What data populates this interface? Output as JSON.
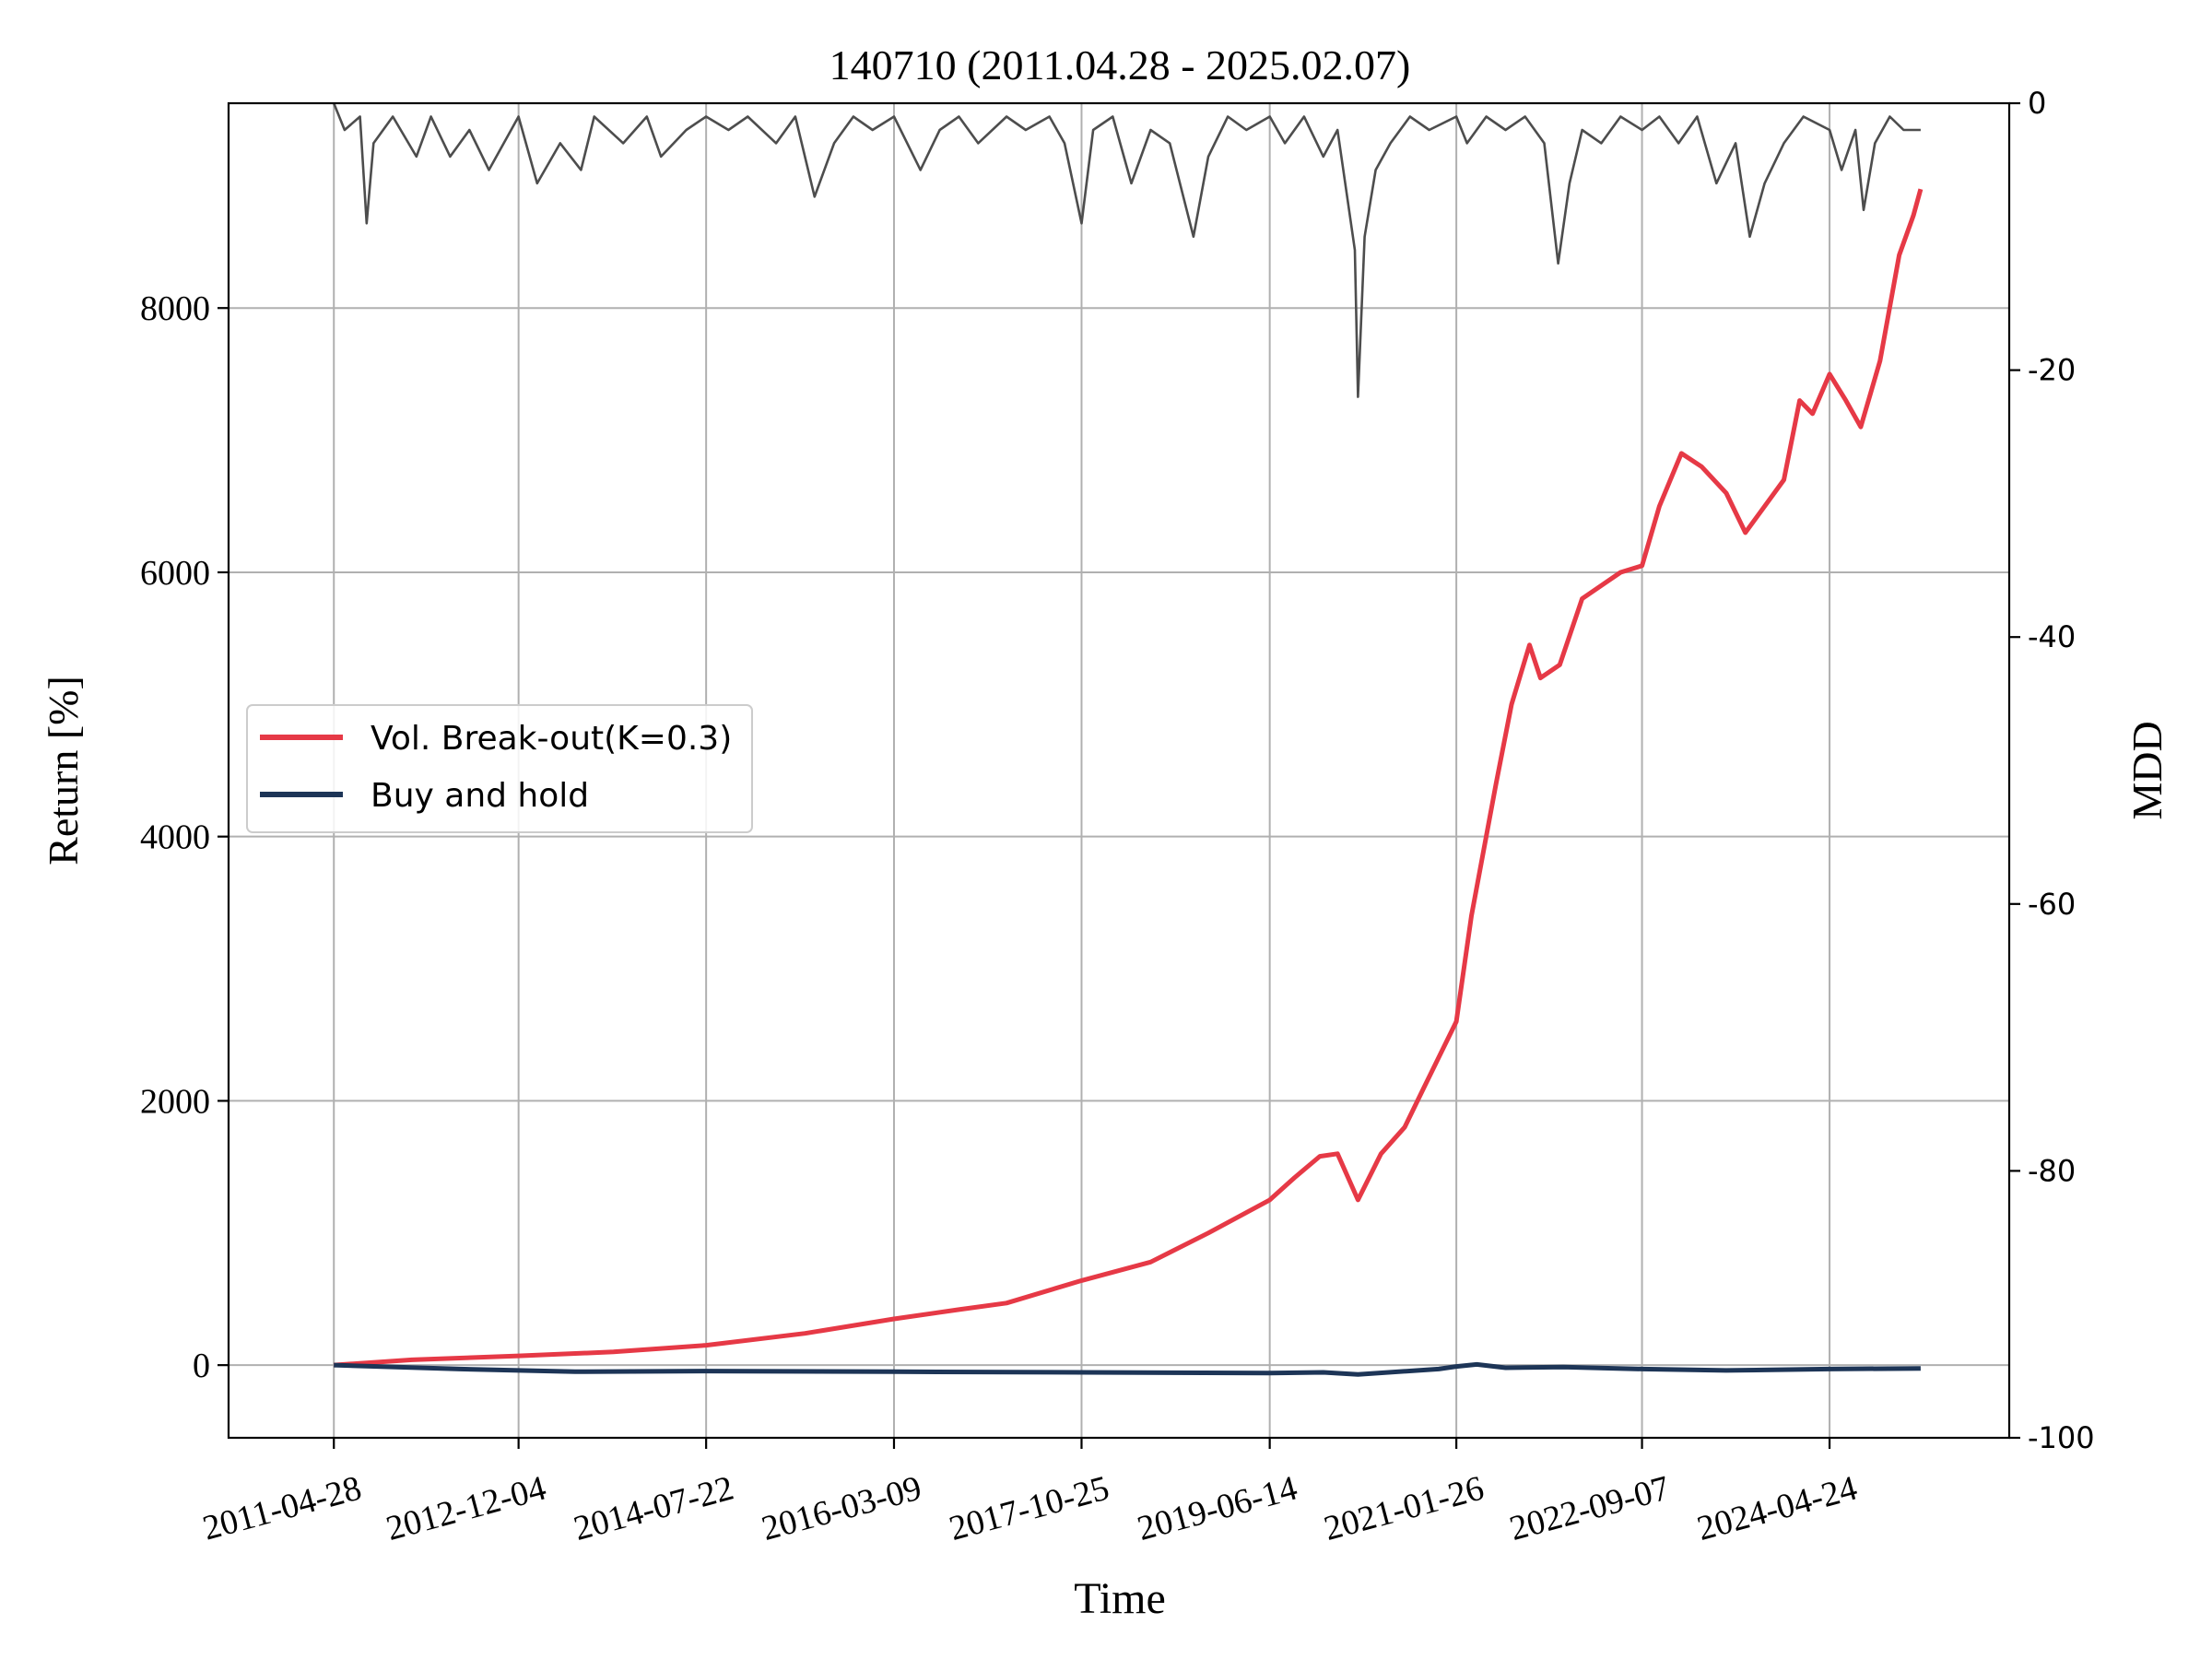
{
  "chart_data": {
    "type": "line",
    "title": "140710 (2011.04.28 - 2025.02.07)",
    "xlabel": "Time",
    "ylabel": "Return [%]",
    "y2label": "MDD",
    "x_ticks": [
      "2011-04-28",
      "2012-12-04",
      "2014-07-22",
      "2016-03-09",
      "2017-10-25",
      "2019-06-14",
      "2021-01-26",
      "2022-09-07",
      "2024-04-24"
    ],
    "x_range": [
      "2010-05-29",
      "2025-11-15"
    ],
    "ylim": [
      -550,
      9550
    ],
    "y_ticks": [
      0,
      2000,
      4000,
      6000,
      8000
    ],
    "y2lim": [
      -100,
      0
    ],
    "y2_ticks": [
      0,
      -20,
      -40,
      -60,
      -80,
      -100
    ],
    "grid": true,
    "legend_position": "center-left",
    "series": [
      {
        "name": "Vol. Break-out(K=0.3)",
        "axis": "left",
        "color": "#e63946",
        "x": [
          "2011-04-28",
          "2012-01-01",
          "2012-12-04",
          "2013-10-01",
          "2014-07-22",
          "2015-06-01",
          "2016-03-09",
          "2016-10-01",
          "2017-03-01",
          "2017-10-25",
          "2018-06-01",
          "2018-12-01",
          "2019-06-14",
          "2019-09-01",
          "2019-11-20",
          "2020-01-15",
          "2020-03-20",
          "2020-06-01",
          "2020-08-15",
          "2020-10-15",
          "2021-01-26",
          "2021-03-15",
          "2021-06-01",
          "2021-07-20",
          "2021-09-15",
          "2021-10-20",
          "2021-12-20",
          "2022-03-01",
          "2022-05-01",
          "2022-07-01",
          "2022-09-07",
          "2022-11-01",
          "2023-01-10",
          "2023-03-15",
          "2023-06-01",
          "2023-08-01",
          "2023-10-01",
          "2023-12-01",
          "2024-01-20",
          "2024-03-01",
          "2024-04-24",
          "2024-06-15",
          "2024-08-01",
          "2024-10-01",
          "2024-12-01",
          "2025-01-15",
          "2025-02-07"
        ],
        "values": [
          0,
          40,
          70,
          100,
          150,
          240,
          350,
          420,
          470,
          640,
          780,
          1000,
          1250,
          1420,
          1580,
          1600,
          1250,
          1600,
          1800,
          2100,
          2600,
          3400,
          4400,
          5000,
          5450,
          5200,
          5300,
          5800,
          5900,
          6000,
          6050,
          6500,
          6900,
          6800,
          6600,
          6300,
          6500,
          6700,
          7300,
          7200,
          7500,
          7300,
          7100,
          7600,
          8400,
          8700,
          8900
        ]
      },
      {
        "name": "Buy and hold",
        "axis": "left",
        "color": "#1d3557",
        "x": [
          "2011-04-28",
          "2012-06-01",
          "2013-06-01",
          "2014-07-22",
          "2016-03-09",
          "2017-10-25",
          "2019-06-14",
          "2019-12-01",
          "2020-03-20",
          "2020-12-01",
          "2021-01-26",
          "2021-04-01",
          "2021-07-01",
          "2022-01-01",
          "2022-09-07",
          "2023-06-01",
          "2024-04-24",
          "2025-02-07"
        ],
        "values": [
          0,
          -30,
          -50,
          -45,
          -50,
          -55,
          -60,
          -55,
          -70,
          -30,
          -10,
          5,
          -20,
          -15,
          -30,
          -40,
          -30,
          -25
        ]
      },
      {
        "name": "MDD",
        "axis": "right",
        "color": "#4d4d4d",
        "x": [
          "2011-04-28",
          "2011-06-01",
          "2011-07-20",
          "2011-08-10",
          "2011-09-01",
          "2011-11-01",
          "2012-01-15",
          "2012-03-01",
          "2012-05-01",
          "2012-07-01",
          "2012-09-01",
          "2012-12-04",
          "2013-02-01",
          "2013-04-15",
          "2013-06-20",
          "2013-08-01",
          "2013-11-01",
          "2014-01-15",
          "2014-03-01",
          "2014-05-20",
          "2014-07-22",
          "2014-10-01",
          "2014-12-01",
          "2015-03-01",
          "2015-05-01",
          "2015-07-01",
          "2015-09-01",
          "2015-11-01",
          "2016-01-01",
          "2016-03-09",
          "2016-06-01",
          "2016-08-01",
          "2016-10-01",
          "2016-12-01",
          "2017-03-01",
          "2017-05-01",
          "2017-07-15",
          "2017-09-01",
          "2017-10-25",
          "2017-12-01",
          "2018-02-01",
          "2018-04-01",
          "2018-06-01",
          "2018-08-01",
          "2018-10-15",
          "2018-12-01",
          "2019-02-01",
          "2019-04-01",
          "2019-06-14",
          "2019-08-01",
          "2019-10-01",
          "2019-12-01",
          "2020-01-15",
          "2020-03-10",
          "2020-03-20",
          "2020-04-10",
          "2020-05-15",
          "2020-07-01",
          "2020-09-01",
          "2020-11-01",
          "2021-01-26",
          "2021-03-01",
          "2021-05-01",
          "2021-07-01",
          "2021-09-01",
          "2021-11-01",
          "2021-12-15",
          "2022-01-20",
          "2022-03-01",
          "2022-05-01",
          "2022-07-01",
          "2022-09-07",
          "2022-11-01",
          "2023-01-01",
          "2023-03-01",
          "2023-05-01",
          "2023-07-01",
          "2023-08-15",
          "2023-10-01",
          "2023-12-01",
          "2024-02-01",
          "2024-04-24",
          "2024-06-01",
          "2024-07-15",
          "2024-08-10",
          "2024-09-15",
          "2024-11-01",
          "2024-12-15",
          "2025-02-07"
        ],
        "values": [
          0,
          -2,
          -1,
          -9,
          -3,
          -1,
          -4,
          -1,
          -4,
          -2,
          -5,
          -1,
          -6,
          -3,
          -5,
          -1,
          -3,
          -1,
          -4,
          -2,
          -1,
          -2,
          -1,
          -3,
          -1,
          -7,
          -3,
          -1,
          -2,
          -1,
          -5,
          -2,
          -1,
          -3,
          -1,
          -2,
          -1,
          -3,
          -9,
          -2,
          -1,
          -6,
          -2,
          -3,
          -10,
          -4,
          -1,
          -2,
          -1,
          -3,
          -1,
          -4,
          -2,
          -11,
          -22,
          -10,
          -5,
          -3,
          -1,
          -2,
          -1,
          -3,
          -1,
          -2,
          -1,
          -3,
          -12,
          -6,
          -2,
          -3,
          -1,
          -2,
          -1,
          -3,
          -1,
          -6,
          -3,
          -10,
          -6,
          -3,
          -1,
          -2,
          -5,
          -2,
          -8,
          -3,
          -1,
          -2,
          -2
        ]
      }
    ]
  }
}
